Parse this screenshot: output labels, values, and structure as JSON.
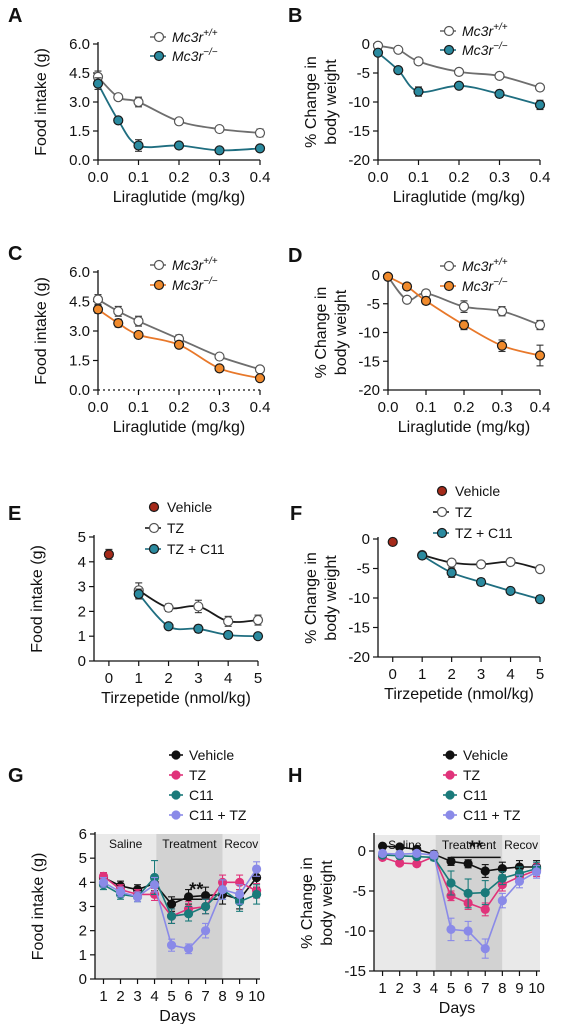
{
  "figure": {
    "panels": [
      "A",
      "B",
      "C",
      "D",
      "E",
      "F",
      "G",
      "H"
    ]
  },
  "chart_data": [
    {
      "panel": "A",
      "type": "scatter",
      "xlabel": "Liraglutide (mg/kg)",
      "ylabel": "Food intake (g)",
      "xlim": [
        0,
        0.4
      ],
      "ylim": [
        0,
        6.0
      ],
      "xticks": [
        "0.0",
        "0.1",
        "0.2",
        "0.3",
        "0.4"
      ],
      "yticks": [
        "0.0",
        "1.5",
        "3.0",
        "4.5",
        "6.0"
      ],
      "xtick_values": [
        0,
        0.1,
        0.2,
        0.3,
        0.4
      ],
      "ytick_values": [
        0,
        1.5,
        3.0,
        4.5,
        6.0
      ],
      "legend_position": "top-right",
      "series": [
        {
          "name": "Mc3r+/+",
          "color": "#ffffff",
          "curve": "#6e6e6e",
          "x": [
            0,
            0.05,
            0.1,
            0.2,
            0.3,
            0.4
          ],
          "y": [
            4.3,
            3.25,
            3.0,
            2.0,
            1.6,
            1.4
          ],
          "err": [
            0.3,
            0.15,
            0.25,
            0.1,
            0.1,
            0.2
          ]
        },
        {
          "name": "Mc3r−/−",
          "color": "#2a8a9f",
          "curve": "#1f6e80",
          "x": [
            0,
            0.05,
            0.1,
            0.2,
            0.3,
            0.4
          ],
          "y": [
            3.95,
            2.05,
            0.75,
            0.75,
            0.5,
            0.6
          ],
          "err": [
            0.3,
            0.15,
            0.3,
            0.1,
            0.05,
            0.1
          ]
        }
      ]
    },
    {
      "panel": "B",
      "type": "scatter",
      "xlabel": "Liraglutide (mg/kg)",
      "ylabel": "% Change in body weight",
      "xlim": [
        0,
        0.4
      ],
      "ylim": [
        -20,
        0
      ],
      "xticks": [
        "0.0",
        "0.1",
        "0.2",
        "0.3",
        "0.4"
      ],
      "yticks": [
        "0",
        "-5",
        "-10",
        "-15",
        "-20"
      ],
      "xtick_values": [
        0,
        0.1,
        0.2,
        0.3,
        0.4
      ],
      "ytick_values": [
        0,
        -5,
        -10,
        -15,
        -20
      ],
      "legend_position": "top-right",
      "series": [
        {
          "name": "Mc3r+/+",
          "color": "#ffffff",
          "curve": "#6e6e6e",
          "x": [
            0,
            0.05,
            0.1,
            0.2,
            0.3,
            0.4
          ],
          "y": [
            -0.3,
            -1.0,
            -3.0,
            -4.8,
            -5.5,
            -7.5
          ],
          "err": [
            0.3,
            0.4,
            0.4,
            0.4,
            0.4,
            0.5
          ]
        },
        {
          "name": "Mc3r−/−",
          "color": "#2a8a9f",
          "curve": "#1f6e80",
          "x": [
            0,
            0.05,
            0.1,
            0.2,
            0.3,
            0.4
          ],
          "y": [
            -1.5,
            -4.5,
            -8.2,
            -7.2,
            -8.6,
            -10.5
          ],
          "err": [
            0.3,
            0.5,
            0.8,
            0.5,
            0.6,
            0.8
          ]
        }
      ]
    },
    {
      "panel": "C",
      "type": "scatter",
      "xlabel": "Liraglutide (mg/kg)",
      "ylabel": "Food intake (g)",
      "xlim": [
        0,
        0.4
      ],
      "ylim": [
        0,
        6.0
      ],
      "xticks": [
        "0.0",
        "0.1",
        "0.2",
        "0.3",
        "0.4"
      ],
      "yticks": [
        "0.0",
        "1.5",
        "3.0",
        "4.5",
        "6.0"
      ],
      "xtick_values": [
        0,
        0.1,
        0.2,
        0.3,
        0.4
      ],
      "ytick_values": [
        0,
        1.5,
        3.0,
        4.5,
        6.0
      ],
      "zero_line": "dotted",
      "legend_position": "top-right",
      "series": [
        {
          "name": "Mc3r+/+",
          "color": "#ffffff",
          "curve": "#6e6e6e",
          "x": [
            0,
            0.05,
            0.1,
            0.2,
            0.3,
            0.4
          ],
          "y": [
            4.6,
            4.0,
            3.5,
            2.6,
            1.7,
            1.05
          ],
          "err": [
            0.25,
            0.25,
            0.25,
            0.2,
            0.15,
            0.1
          ]
        },
        {
          "name": "Mc3r−/−",
          "color": "#f08a2c",
          "curve": "#e8782a",
          "x": [
            0,
            0.05,
            0.1,
            0.2,
            0.3,
            0.4
          ],
          "y": [
            4.1,
            3.4,
            2.8,
            2.3,
            1.1,
            0.6
          ],
          "err": [
            0.2,
            0.2,
            0.15,
            0.15,
            0.1,
            0.1
          ]
        }
      ]
    },
    {
      "panel": "D",
      "type": "scatter",
      "xlabel": "Liraglutide (mg/kg)",
      "ylabel": "% Change in body weight",
      "xlim": [
        0,
        0.4
      ],
      "ylim": [
        -20,
        0
      ],
      "xticks": [
        "0.0",
        "0.1",
        "0.2",
        "0.3",
        "0.4"
      ],
      "yticks": [
        "0",
        "-5",
        "-10",
        "-15",
        "-20"
      ],
      "xtick_values": [
        0,
        0.1,
        0.2,
        0.3,
        0.4
      ],
      "ytick_values": [
        0,
        -5,
        -10,
        -15,
        -20
      ],
      "legend_position": "top-right",
      "series": [
        {
          "name": "Mc3r+/+",
          "color": "#ffffff",
          "curve": "#6e6e6e",
          "x": [
            0,
            0.05,
            0.1,
            0.2,
            0.3,
            0.4
          ],
          "y": [
            -0.3,
            -4.3,
            -3.2,
            -5.5,
            -6.3,
            -8.7
          ],
          "err": [
            0.3,
            0.5,
            0.6,
            1.0,
            0.8,
            0.8
          ]
        },
        {
          "name": "Mc3r−/−",
          "color": "#f08a2c",
          "curve": "#e8782a",
          "x": [
            0,
            0.05,
            0.1,
            0.2,
            0.3,
            0.4
          ],
          "y": [
            -0.3,
            -2.0,
            -4.5,
            -8.7,
            -12.3,
            -14.0
          ],
          "err": [
            0.3,
            0.6,
            0.6,
            0.8,
            1.0,
            1.8
          ]
        }
      ]
    },
    {
      "panel": "E",
      "type": "scatter",
      "xlabel": "Tirzepetide (nmol/kg)",
      "ylabel": "Food intake (g)",
      "xlim": [
        -0.5,
        5
      ],
      "ylim": [
        0,
        5
      ],
      "xticks": [
        "0",
        "1",
        "2",
        "3",
        "4",
        "5"
      ],
      "yticks": [
        "0",
        "1",
        "2",
        "3",
        "4",
        "5"
      ],
      "xtick_values": [
        0,
        1,
        2,
        3,
        4,
        5
      ],
      "ytick_values": [
        0,
        1,
        2,
        3,
        4,
        5
      ],
      "legend_position": "top-right",
      "series": [
        {
          "name": "Vehicle",
          "color": "#a52a1a",
          "curve": "",
          "x": [
            0
          ],
          "y": [
            4.3
          ],
          "err": [
            0.2
          ]
        },
        {
          "name": "TZ",
          "color": "#ffffff",
          "curve": "#1a1a1a",
          "x": [
            1,
            2,
            3,
            4,
            5
          ],
          "y": [
            2.85,
            2.15,
            2.2,
            1.6,
            1.65
          ],
          "err": [
            0.3,
            0.15,
            0.25,
            0.2,
            0.2
          ]
        },
        {
          "name": "TZ + C11",
          "color": "#2a8a9f",
          "curve": "#1f6e80",
          "x": [
            1,
            2,
            3,
            4,
            5
          ],
          "y": [
            2.7,
            1.4,
            1.3,
            1.05,
            1.0
          ],
          "err": [
            0.2,
            0.1,
            0.15,
            0.1,
            0.1
          ]
        }
      ]
    },
    {
      "panel": "F",
      "type": "scatter",
      "xlabel": "Tirzepetide (nmol/kg)",
      "ylabel": "% Change in body weight",
      "xlim": [
        -0.5,
        5
      ],
      "ylim": [
        -20,
        0
      ],
      "xticks": [
        "0",
        "1",
        "2",
        "3",
        "4",
        "5"
      ],
      "yticks": [
        "0",
        "-5",
        "-10",
        "-15",
        "-20"
      ],
      "xtick_values": [
        0,
        1,
        2,
        3,
        4,
        5
      ],
      "ytick_values": [
        0,
        -5,
        -10,
        -15,
        -20
      ],
      "legend_position": "top-right",
      "series": [
        {
          "name": "Vehicle",
          "color": "#a52a1a",
          "curve": "",
          "x": [
            0
          ],
          "y": [
            -0.5
          ],
          "err": [
            0.2
          ]
        },
        {
          "name": "TZ",
          "color": "#ffffff",
          "curve": "#1a1a1a",
          "x": [
            1,
            2,
            3,
            4,
            5
          ],
          "y": [
            -2.7,
            -4.0,
            -4.3,
            -3.9,
            -5.1
          ],
          "err": [
            0.4,
            0.4,
            0.4,
            0.4,
            0.4
          ]
        },
        {
          "name": "TZ + C11",
          "color": "#2a8a9f",
          "curve": "#1f6e80",
          "x": [
            1,
            2,
            3,
            4,
            5
          ],
          "y": [
            -2.8,
            -5.7,
            -7.3,
            -8.8,
            -10.2
          ],
          "err": [
            0.4,
            0.8,
            0.6,
            0.4,
            0.6
          ]
        }
      ]
    },
    {
      "panel": "G",
      "type": "line",
      "xlabel": "Days",
      "ylabel": "Food intake (g)",
      "xlim": [
        0.5,
        10.2
      ],
      "ylim": [
        0,
        6
      ],
      "xticks": [
        "1",
        "2",
        "3",
        "4",
        "5",
        "6",
        "7",
        "8",
        "9",
        "10"
      ],
      "yticks": [
        "0",
        "1",
        "2",
        "3",
        "4",
        "5",
        "6"
      ],
      "xtick_values": [
        1,
        2,
        3,
        4,
        5,
        6,
        7,
        8,
        9,
        10
      ],
      "ytick_values": [
        0,
        1,
        2,
        3,
        4,
        5,
        6
      ],
      "regions": [
        {
          "label": "Saline",
          "from": 0.5,
          "to": 4.1,
          "shade": "#e9e9e9"
        },
        {
          "label": "Treatment",
          "from": 4.1,
          "to": 8.0,
          "shade": "#d2d2d2"
        },
        {
          "label": "Recov",
          "from": 8.0,
          "to": 10.2,
          "shade": "#e9e9e9"
        }
      ],
      "significance": {
        "label": "**",
        "from": 5,
        "to": 7.9,
        "y": 3.3
      },
      "legend_position": "top-right",
      "series": [
        {
          "name": "Vehicle",
          "color": "#111111",
          "x": [
            1,
            2,
            3,
            4,
            5,
            6,
            7,
            8,
            9,
            10
          ],
          "y": [
            4.2,
            3.85,
            3.7,
            3.95,
            3.1,
            3.4,
            3.45,
            3.5,
            3.3,
            4.2
          ],
          "err": [
            0.2,
            0.2,
            0.2,
            0.3,
            0.3,
            0.3,
            0.35,
            0.4,
            0.4,
            0.4
          ]
        },
        {
          "name": "TZ",
          "color": "#e0337a",
          "x": [
            1,
            2,
            3,
            4,
            5,
            6,
            7,
            8,
            9,
            10
          ],
          "y": [
            4.25,
            3.7,
            3.5,
            3.5,
            2.6,
            2.9,
            3.0,
            4.0,
            4.0,
            3.65
          ],
          "err": [
            0.15,
            0.2,
            0.2,
            0.25,
            0.3,
            0.3,
            0.3,
            0.3,
            0.3,
            0.3
          ]
        },
        {
          "name": "C11",
          "color": "#1a7a7a",
          "x": [
            1,
            2,
            3,
            4,
            5,
            6,
            7,
            8,
            9,
            10
          ],
          "y": [
            3.9,
            3.5,
            3.4,
            4.2,
            2.6,
            2.7,
            3.0,
            3.7,
            3.2,
            3.5
          ],
          "err": [
            0.2,
            0.2,
            0.2,
            0.7,
            0.3,
            0.3,
            0.3,
            0.4,
            0.4,
            0.4
          ]
        },
        {
          "name": "C11 + TZ",
          "color": "#8a8ae8",
          "x": [
            1,
            2,
            3,
            4,
            5,
            6,
            7,
            8,
            9,
            10
          ],
          "y": [
            4.0,
            3.6,
            3.4,
            3.9,
            1.4,
            1.25,
            2.0,
            3.7,
            3.5,
            4.55
          ],
          "err": [
            0.2,
            0.2,
            0.2,
            0.3,
            0.25,
            0.2,
            0.3,
            0.4,
            0.4,
            0.3
          ]
        }
      ]
    },
    {
      "panel": "H",
      "type": "line",
      "xlabel": "Days",
      "ylabel": "% Change in body weight",
      "xlim": [
        0.5,
        10.2
      ],
      "ylim": [
        -15,
        2
      ],
      "xticks": [
        "1",
        "2",
        "3",
        "4",
        "5",
        "6",
        "7",
        "8",
        "9",
        "10"
      ],
      "yticks": [
        "0",
        "-5",
        "-10",
        "-15"
      ],
      "xtick_values": [
        1,
        2,
        3,
        4,
        5,
        6,
        7,
        8,
        9,
        10
      ],
      "ytick_values": [
        0,
        -5,
        -10,
        -15
      ],
      "regions": [
        {
          "label": "Saline",
          "from": 0.5,
          "to": 4.1,
          "shade": "#e9e9e9"
        },
        {
          "label": "Treatment",
          "from": 4.1,
          "to": 8.0,
          "shade": "#d2d2d2"
        },
        {
          "label": "Recov",
          "from": 8.0,
          "to": 10.2,
          "shade": "#e9e9e9"
        }
      ],
      "significance": {
        "label": "**",
        "from": 5,
        "to": 7.9,
        "y": -0.8
      },
      "legend_position": "top-right",
      "series": [
        {
          "name": "Vehicle",
          "color": "#111111",
          "x": [
            1,
            2,
            3,
            4,
            5,
            6,
            7,
            8,
            9,
            10
          ],
          "y": [
            0.6,
            0.5,
            0.2,
            -0.4,
            -1.3,
            -1.6,
            -2.5,
            -2.2,
            -2.0,
            -2.0
          ],
          "err": [
            0.2,
            0.2,
            0.3,
            0.4,
            0.5,
            0.5,
            0.8,
            0.8,
            0.8,
            0.8
          ]
        },
        {
          "name": "TZ",
          "color": "#e0337a",
          "x": [
            1,
            2,
            3,
            4,
            5,
            6,
            7,
            8,
            9,
            10
          ],
          "y": [
            -0.8,
            -1.5,
            -1.6,
            -0.7,
            -5.6,
            -6.5,
            -7.3,
            -4.2,
            -3.2,
            -2.4
          ],
          "err": [
            0.3,
            0.3,
            0.3,
            0.4,
            0.6,
            0.8,
            0.8,
            0.8,
            0.8,
            0.8
          ]
        },
        {
          "name": "C11",
          "color": "#1a7a7a",
          "x": [
            1,
            2,
            3,
            4,
            5,
            6,
            7,
            8,
            9,
            10
          ],
          "y": [
            -0.5,
            -0.6,
            -0.7,
            -0.8,
            -4.0,
            -5.3,
            -5.2,
            -3.4,
            -2.8,
            -2.2
          ],
          "err": [
            0.3,
            0.3,
            0.3,
            0.4,
            1.5,
            1.8,
            1.5,
            0.8,
            0.8,
            0.8
          ]
        },
        {
          "name": "C11 + TZ",
          "color": "#8a8ae8",
          "x": [
            1,
            2,
            3,
            4,
            5,
            6,
            7,
            8,
            9,
            10
          ],
          "y": [
            -0.3,
            -0.4,
            -0.3,
            -0.5,
            -9.8,
            -10.0,
            -12.2,
            -6.2,
            -3.8,
            -2.6
          ],
          "err": [
            0.3,
            0.3,
            0.3,
            0.4,
            1.4,
            1.2,
            1.2,
            0.9,
            0.8,
            0.8
          ]
        }
      ]
    }
  ]
}
